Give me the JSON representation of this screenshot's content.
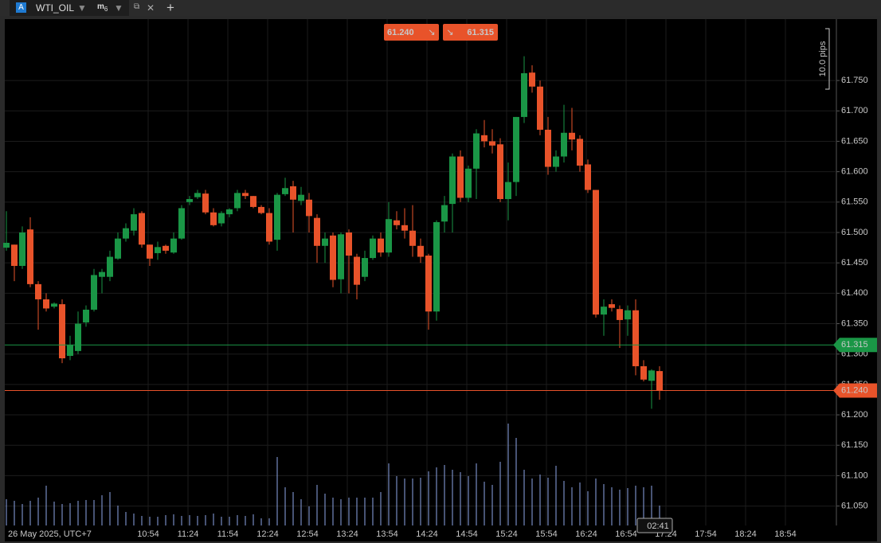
{
  "tabs": {
    "symbol_icon": "A",
    "symbol": "WTI_OIL",
    "timeframe_letter": "m",
    "timeframe_number": "6"
  },
  "chart_data": {
    "type": "candlestick",
    "open": [
      61.475,
      61.48,
      61.445,
      61.505,
      61.415,
      61.39,
      61.378,
      61.382,
      61.297,
      61.305,
      61.352,
      61.373,
      61.427,
      61.427,
      61.457,
      61.49,
      61.503,
      61.532,
      61.48,
      61.466,
      61.478,
      61.467,
      61.49,
      61.55,
      61.558,
      61.564,
      61.533,
      61.515,
      61.53,
      61.54,
      61.565,
      61.56,
      61.542,
      61.532,
      61.488,
      61.563,
      61.576,
      61.552,
      61.554,
      61.524,
      61.478,
      61.495,
      61.423,
      61.5,
      61.46,
      61.427,
      61.458,
      61.49,
      61.467,
      61.52,
      61.512,
      61.503,
      61.478,
      61.462,
      61.37,
      61.518,
      61.547,
      61.625,
      61.557,
      61.605,
      61.66,
      61.65,
      61.645,
      61.555,
      61.583,
      61.69,
      61.763,
      61.74,
      61.669,
      61.608,
      61.625,
      61.664,
      61.654,
      61.612,
      61.57,
      61.365,
      61.382,
      61.374,
      61.357,
      61.372,
      61.28,
      61.256,
      61.272
    ],
    "high": [
      61.535,
      61.48,
      61.51,
      61.525,
      61.42,
      61.4,
      61.385,
      61.39,
      61.33,
      61.37,
      61.38,
      61.44,
      61.44,
      61.47,
      61.5,
      61.515,
      61.54,
      61.535,
      61.48,
      61.485,
      61.48,
      61.5,
      61.545,
      61.56,
      61.57,
      61.57,
      61.54,
      61.535,
      61.54,
      61.57,
      61.57,
      61.56,
      61.545,
      61.54,
      61.565,
      61.59,
      61.585,
      61.575,
      61.565,
      61.53,
      61.5,
      61.5,
      61.5,
      61.505,
      61.465,
      61.47,
      61.495,
      61.5,
      61.55,
      61.535,
      61.54,
      61.545,
      61.49,
      61.465,
      61.52,
      61.56,
      61.63,
      61.635,
      61.61,
      61.67,
      61.685,
      61.67,
      61.655,
      61.615,
      61.69,
      61.79,
      61.775,
      61.75,
      61.69,
      61.635,
      61.71,
      61.705,
      61.66,
      61.62,
      61.57,
      61.39,
      61.39,
      61.38,
      61.38,
      61.39,
      61.29,
      61.275,
      61.28
    ],
    "low": [
      61.47,
      61.42,
      61.44,
      61.41,
      61.34,
      61.37,
      61.375,
      61.285,
      61.29,
      61.3,
      61.345,
      61.37,
      61.4,
      61.42,
      61.455,
      61.485,
      61.495,
      61.475,
      61.445,
      61.455,
      61.465,
      61.465,
      61.488,
      61.545,
      61.555,
      61.53,
      61.51,
      61.51,
      61.525,
      61.535,
      61.555,
      61.54,
      61.53,
      61.48,
      61.47,
      61.56,
      61.5,
      61.545,
      61.5,
      61.45,
      61.45,
      61.41,
      61.4,
      61.4,
      61.39,
      61.42,
      61.455,
      61.46,
      61.46,
      61.505,
      61.49,
      61.46,
      61.45,
      61.34,
      61.355,
      61.5,
      61.5,
      61.55,
      61.55,
      61.555,
      61.64,
      61.63,
      61.55,
      61.52,
      61.56,
      61.68,
      61.73,
      61.66,
      61.595,
      61.6,
      61.615,
      61.635,
      61.6,
      61.565,
      61.36,
      61.33,
      61.37,
      61.31,
      61.33,
      61.265,
      61.255,
      61.21,
      61.225
    ],
    "close": [
      61.483,
      61.445,
      61.5,
      61.415,
      61.39,
      61.375,
      61.383,
      61.293,
      61.315,
      61.35,
      61.373,
      61.43,
      61.435,
      61.46,
      61.49,
      61.507,
      61.53,
      61.48,
      61.457,
      61.476,
      61.47,
      61.49,
      61.54,
      61.555,
      61.565,
      61.533,
      61.512,
      61.532,
      61.538,
      61.565,
      61.56,
      61.542,
      61.532,
      61.485,
      61.562,
      61.573,
      61.554,
      61.562,
      61.527,
      61.478,
      61.49,
      61.422,
      61.497,
      61.462,
      61.414,
      61.458,
      61.49,
      61.467,
      61.522,
      61.512,
      61.503,
      61.478,
      61.46,
      61.37,
      61.517,
      61.545,
      61.625,
      61.557,
      61.605,
      61.663,
      61.65,
      61.643,
      61.555,
      61.583,
      61.69,
      61.762,
      61.74,
      61.669,
      61.608,
      61.625,
      61.664,
      61.653,
      61.61,
      61.57,
      61.365,
      61.378,
      61.376,
      61.356,
      61.372,
      61.28,
      61.258,
      61.273,
      61.24
    ],
    "volume": [
      33,
      31,
      27,
      31,
      35,
      50,
      30,
      27,
      28,
      31,
      32,
      32,
      38,
      42,
      25,
      17,
      15,
      12,
      11,
      11,
      13,
      14,
      12,
      13,
      12,
      13,
      15,
      11,
      11,
      13,
      12,
      14,
      9,
      9,
      86,
      48,
      42,
      33,
      24,
      51,
      40,
      35,
      33,
      35,
      35,
      35,
      35,
      42,
      78,
      62,
      59,
      59,
      60,
      68,
      73,
      76,
      70,
      67,
      62,
      78,
      55,
      51,
      80,
      128,
      110,
      70,
      59,
      64,
      60,
      75,
      56,
      48,
      54,
      43,
      59,
      52,
      48,
      45,
      47,
      50,
      48,
      50,
      25
    ],
    "up_color": "#1a9646",
    "down_color": "#e8532a",
    "volume_color": "#8ea6e8",
    "ylim": [
      61.018,
      61.851
    ],
    "yticks": [
      {
        "value": 61.75,
        "label": "61.750"
      },
      {
        "value": 61.7,
        "label": "61.700"
      },
      {
        "value": 61.65,
        "label": "61.650"
      },
      {
        "value": 61.6,
        "label": "61.600"
      },
      {
        "value": 61.55,
        "label": "61.550"
      },
      {
        "value": 61.5,
        "label": "61.500"
      },
      {
        "value": 61.45,
        "label": "61.450"
      },
      {
        "value": 61.4,
        "label": "61.400"
      },
      {
        "value": 61.35,
        "label": "61.350"
      },
      {
        "value": 61.3,
        "label": "61.300"
      },
      {
        "value": 61.25,
        "label": "61.250"
      },
      {
        "value": 61.2,
        "label": "61.200"
      },
      {
        "value": 61.15,
        "label": "61.150"
      },
      {
        "value": 61.1,
        "label": "61.100"
      },
      {
        "value": 61.05,
        "label": "61.050"
      }
    ],
    "grid": true,
    "date_label": "26 May 2025, UTC+7",
    "x_labels": [
      "10:54",
      "11:24",
      "11:54",
      "12:24",
      "12:54",
      "13:24",
      "13:54",
      "14:24",
      "14:54",
      "15:24",
      "15:54",
      "16:24",
      "16:54",
      "17:24",
      "17:54",
      "18:24",
      "18:54"
    ],
    "bid": 61.24,
    "bid_label": "61.240",
    "bid_color": "#e8532a",
    "ask": 61.315,
    "ask_label": "61.315",
    "ask_color": "#1a9646",
    "scale_label": "10.0 pips",
    "countdown": "02:41"
  }
}
